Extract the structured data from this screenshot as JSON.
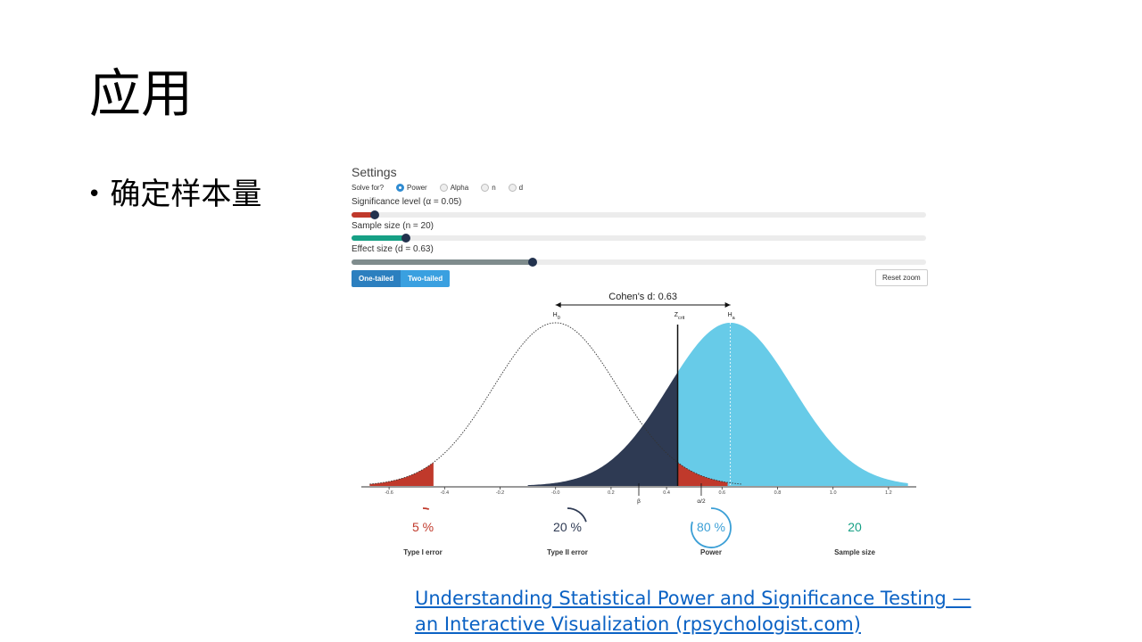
{
  "slide": {
    "title": "应用",
    "bullet": "确定样本量",
    "link_line1": "Understanding Statistical Power and Significance Testing —",
    "link_line2": "an Interactive Visualization (rpsychologist.com)"
  },
  "settings": {
    "title": "Settings",
    "solve_for_label": "Solve for?",
    "solve_options": [
      "Power",
      "Alpha",
      "n",
      "d"
    ],
    "selected": "Power",
    "sliders": [
      {
        "label": "Significance level (α = 0.05)",
        "fraction": 0.04,
        "color": "#c0392b"
      },
      {
        "label": "Sample size (n = 20)",
        "fraction": 0.095,
        "color": "#16a085"
      },
      {
        "label": "Effect size (d = 0.63)",
        "fraction": 0.315,
        "color": "#7f8c8d"
      }
    ],
    "one_tailed": "One-tailed",
    "two_tailed": "Two-tailed",
    "reset_zoom": "Reset zoom"
  },
  "chart_data": {
    "type": "area",
    "title": "Cohen's d: 0.63",
    "d": 0.63,
    "h0_mean": 0.0,
    "ha_mean": 0.63,
    "sd": 0.2236,
    "z_crit": 0.44,
    "xlim": [
      -0.7,
      1.3
    ],
    "x_ticks": [
      "-0.6",
      "-0.4",
      "-0.2",
      "-0.0",
      "0.2",
      "0.4",
      "0.6",
      "0.8",
      "1.0",
      "1.2"
    ],
    "x_tick_values": [
      -0.6,
      -0.4,
      -0.2,
      0.0,
      0.2,
      0.4,
      0.6,
      0.8,
      1.0,
      1.2
    ],
    "labels": {
      "h0": "H",
      "h0_sub": "0",
      "ha": "H",
      "ha_sub": "a",
      "zcrit": "Z",
      "zcrit_sub": "crit",
      "beta": "β",
      "alpha2": "α/2"
    },
    "colors": {
      "ha": "#67cbe8",
      "beta": "#2e3a53",
      "alpha": "#c0392b"
    }
  },
  "stats": [
    {
      "value": "5 %",
      "label": "Type I error",
      "fraction": 0.05,
      "color": "#c0392b"
    },
    {
      "value": "20 %",
      "label": "Type II error",
      "fraction": 0.2,
      "color": "#2e3a53"
    },
    {
      "value": "80 %",
      "label": "Power",
      "fraction": 0.8,
      "color": "#3b9fd6"
    },
    {
      "value": "20",
      "label": "Sample size",
      "fraction": 0,
      "color": "#16a085"
    }
  ]
}
